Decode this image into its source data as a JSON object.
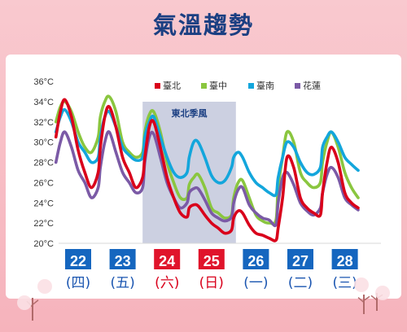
{
  "title": "氣溫趨勢",
  "annotation": "東北季風",
  "chart_data": {
    "type": "line",
    "title": "氣溫趨勢",
    "ylim": [
      20,
      36
    ],
    "yticks": [
      20,
      22,
      24,
      26,
      28,
      30,
      32,
      34,
      36
    ],
    "ytick_labels": [
      "20°C",
      "22°C",
      "24°C",
      "26°C",
      "28°C",
      "30°C",
      "32°C",
      "34°C",
      "36°C"
    ],
    "grid": false,
    "legend_position": "top",
    "categories": [
      {
        "date": "22",
        "weekday": "(四)",
        "weekend": false
      },
      {
        "date": "23",
        "weekday": "(五)",
        "weekend": false
      },
      {
        "date": "24",
        "weekday": "(六)",
        "weekend": true
      },
      {
        "date": "25",
        "weekday": "(日)",
        "weekend": true
      },
      {
        "date": "26",
        "weekday": "(一)",
        "weekend": false
      },
      {
        "date": "27",
        "weekday": "(二)",
        "weekend": false
      },
      {
        "date": "28",
        "weekday": "(三)",
        "weekend": false
      }
    ],
    "shaded_region": {
      "label": "東北季風",
      "x_range": [
        1.45,
        3.55
      ]
    },
    "x": [
      -0.5,
      -0.4,
      -0.3,
      -0.15,
      0,
      0.15,
      0.3,
      0.45,
      0.5,
      0.6,
      0.7,
      0.85,
      1,
      1.15,
      1.3,
      1.45,
      1.5,
      1.6,
      1.7,
      1.85,
      2,
      2.15,
      2.3,
      2.45,
      2.5,
      2.6,
      2.7,
      2.85,
      3,
      3.15,
      3.3,
      3.45,
      3.5,
      3.6,
      3.7,
      3.85,
      4,
      4.15,
      4.3,
      4.45,
      4.5,
      4.6,
      4.7,
      4.85,
      5,
      5.15,
      5.3,
      5.45,
      5.5,
      5.6,
      5.7,
      5.85,
      6,
      6.15,
      6.3
    ],
    "series": [
      {
        "name": "臺北",
        "color": "#d9001b",
        "values": [
          30.5,
          33,
          34.2,
          32.5,
          29.2,
          27,
          25.5,
          27,
          29.5,
          32.5,
          33.5,
          31.5,
          28.5,
          27,
          25.5,
          26.5,
          28.5,
          31.5,
          32,
          29.5,
          26.5,
          24.5,
          23,
          22.6,
          23.5,
          23.8,
          23.7,
          22.8,
          22,
          21.5,
          21,
          21.3,
          22.5,
          23.2,
          23,
          21.8,
          21,
          20.8,
          20.5,
          20.3,
          21.5,
          24.5,
          28.5,
          27.5,
          24.5,
          23.5,
          23,
          22.8,
          25,
          28,
          29.5,
          28,
          25,
          24,
          23.5
        ]
      },
      {
        "name": "臺中",
        "color": "#8ac63f",
        "values": [
          32,
          33.5,
          34,
          33,
          31,
          29.5,
          29,
          30.5,
          32.5,
          34,
          34.5,
          33,
          30,
          29,
          28.5,
          29,
          31,
          32.7,
          33,
          31,
          28,
          26,
          24.5,
          24.5,
          25.8,
          26.5,
          26.8,
          25.5,
          23.5,
          23,
          22.5,
          22.8,
          24.5,
          26,
          26.2,
          24.5,
          22.8,
          22.2,
          22,
          22.3,
          25.5,
          28.5,
          31,
          30,
          27,
          26,
          25.5,
          26,
          28,
          30,
          31,
          29.5,
          27,
          25.5,
          24.5
        ]
      },
      {
        "name": "臺南",
        "color": "#13a6dc",
        "values": [
          31,
          32.5,
          33.2,
          32,
          30,
          29,
          28,
          28.5,
          30.5,
          32.5,
          33,
          31.5,
          29.5,
          28.7,
          28.2,
          28.5,
          30.5,
          32,
          32.5,
          30.5,
          28.5,
          27,
          26.5,
          27,
          28.5,
          30,
          30,
          28.5,
          26.7,
          26,
          26.2,
          27.5,
          28.5,
          29,
          28.5,
          27,
          26,
          25.5,
          25,
          24.8,
          26.5,
          28.5,
          30,
          29.5,
          28,
          27,
          26.8,
          27.5,
          29.5,
          30.5,
          31,
          30,
          28.5,
          27.8,
          27.2
        ]
      },
      {
        "name": "花蓮",
        "color": "#7b5aa6",
        "values": [
          28,
          30,
          31,
          29.5,
          27.2,
          26,
          24.5,
          25.5,
          27.5,
          30,
          31,
          29,
          27,
          26,
          25,
          25.5,
          28,
          30.5,
          30.8,
          28.5,
          26,
          24.5,
          23.5,
          24,
          25,
          25.4,
          25.4,
          24.3,
          23,
          22.5,
          22.2,
          22.6,
          24,
          25.3,
          25.5,
          23.8,
          23,
          22.5,
          22.3,
          21.8,
          24,
          26.5,
          27,
          25.8,
          24,
          23.2,
          22.8,
          23.5,
          25,
          26.8,
          27.5,
          26.5,
          24.5,
          23.8,
          23.3
        ]
      }
    ]
  },
  "legend": {
    "items": [
      "臺北",
      "臺中",
      "臺南",
      "花蓮"
    ]
  },
  "colors": {
    "weekday_badge": "#1566bf",
    "weekend_badge": "#e0142b",
    "weekday_text": "#1a55b0",
    "weekend_text": "#d9001b",
    "shade": "#a2a9c8",
    "title": "#1b3f82"
  }
}
